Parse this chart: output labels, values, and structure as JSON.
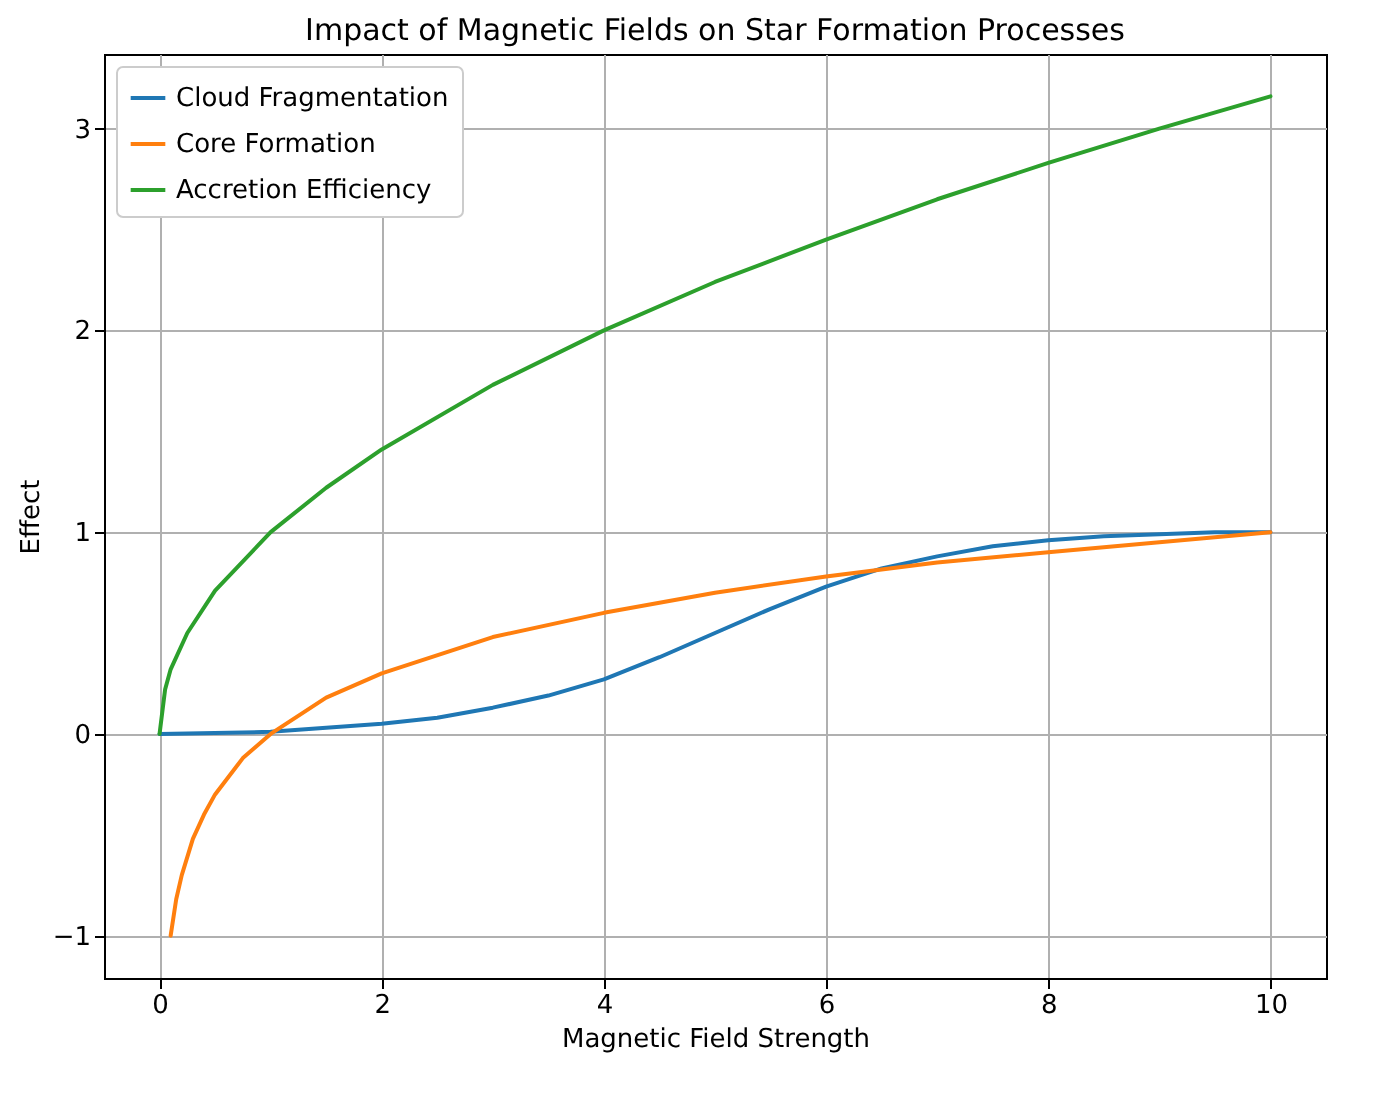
{
  "chart_data": {
    "type": "line",
    "title": "Impact of Magnetic Fields on Star Formation Processes",
    "xlabel": "Magnetic Field Strength",
    "ylabel": "Effect",
    "xlim": [
      -0.5,
      10.5
    ],
    "xticks": [
      0,
      2,
      4,
      6,
      8,
      10
    ],
    "ylim": [
      -1.21,
      3.37
    ],
    "yticks": [
      {
        "value": -1,
        "label": "−1"
      },
      0,
      1,
      2,
      3
    ],
    "grid": true,
    "legend": "top left",
    "series": [
      {
        "name": "Cloud Fragmentation",
        "color": "#1f77b4",
        "x": [
          0,
          1,
          2,
          2.5,
          3,
          3.5,
          4,
          4.5,
          5,
          5.5,
          6,
          6.5,
          7,
          7.5,
          8,
          8.5,
          9,
          9.5,
          10
        ],
        "values": [
          0,
          0.01,
          0.05,
          0.08,
          0.13,
          0.19,
          0.27,
          0.38,
          0.5,
          0.62,
          0.73,
          0.82,
          0.88,
          0.93,
          0.96,
          0.98,
          0.99,
          1.0,
          1.0
        ]
      },
      {
        "name": "Core Formation",
        "color": "#ff7f0e",
        "x": [
          0.1,
          0.15,
          0.2,
          0.3,
          0.4,
          0.5,
          0.75,
          1,
          1.5,
          2,
          3,
          4,
          5,
          6,
          7,
          8,
          9,
          10
        ],
        "values": [
          -1.0,
          -0.82,
          -0.7,
          -0.52,
          -0.4,
          -0.3,
          -0.12,
          0,
          0.18,
          0.3,
          0.48,
          0.6,
          0.7,
          0.78,
          0.85,
          0.9,
          0.95,
          1.0
        ]
      },
      {
        "name": "Accretion Efficiency",
        "color": "#2ca02c",
        "x": [
          0,
          0.05,
          0.1,
          0.25,
          0.5,
          1,
          1.5,
          2,
          3,
          4,
          5,
          6,
          7,
          8,
          9,
          10
        ],
        "values": [
          0,
          0.22,
          0.32,
          0.5,
          0.71,
          1.0,
          1.22,
          1.41,
          1.73,
          2.0,
          2.24,
          2.45,
          2.65,
          2.83,
          3.0,
          3.16
        ]
      }
    ]
  }
}
